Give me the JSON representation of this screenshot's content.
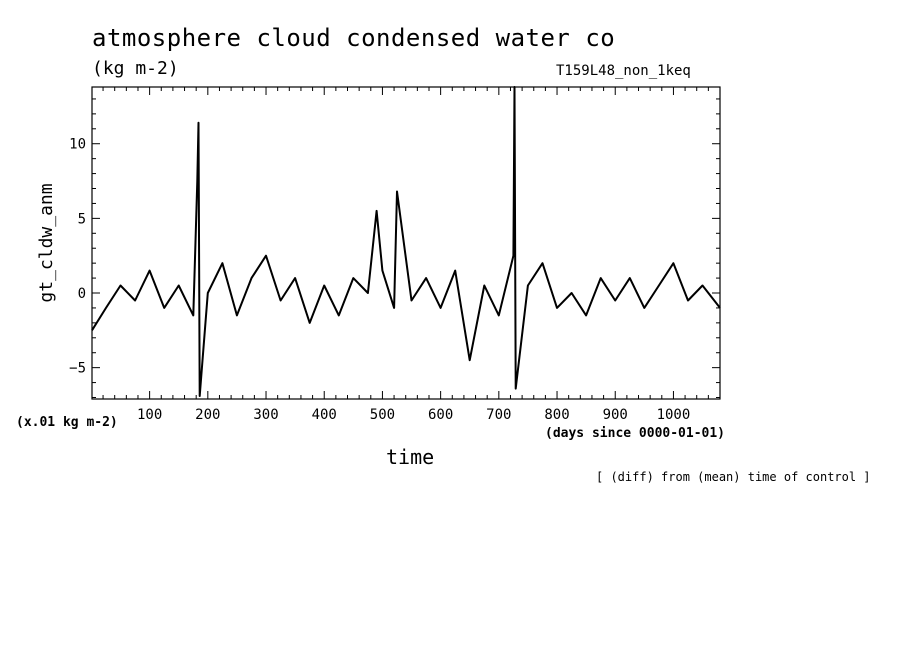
{
  "header": {
    "title": "atmosphere cloud condensed water co",
    "units": "(kg m-2)",
    "run_name": "T159L48_non_1keq"
  },
  "notes": {
    "scale": "(x.01 kg m-2)",
    "time_units": "(days since 0000-01-01)",
    "footnote": "[ (diff) from (mean) time of control ]"
  },
  "chart_data": {
    "type": "line",
    "title": "atmosphere cloud condensed water co",
    "xlabel": "time",
    "ylabel": "gt_cldw_anm",
    "xlim": [
      1,
      1080
    ],
    "ylim": [
      -7.1,
      13.8
    ],
    "xticks": [
      100,
      200,
      300,
      400,
      500,
      600,
      700,
      800,
      900,
      1000
    ],
    "yticks": [
      -5,
      0,
      5,
      10
    ],
    "line_color": "#000000",
    "series": [
      {
        "name": "",
        "x": [
          1,
          25,
          50,
          75,
          100,
          125,
          150,
          175,
          182,
          184,
          186,
          200,
          225,
          250,
          275,
          300,
          325,
          350,
          375,
          400,
          425,
          450,
          475,
          490,
          500,
          520,
          525,
          550,
          575,
          600,
          625,
          650,
          675,
          700,
          725,
          727,
          729,
          750,
          775,
          800,
          825,
          850,
          875,
          900,
          925,
          950,
          975,
          1000,
          1025,
          1050,
          1080
        ],
        "y": [
          -2.5,
          -1.0,
          0.5,
          -0.5,
          1.5,
          -1.0,
          0.5,
          -1.5,
          7.5,
          11.4,
          -6.9,
          0.0,
          2.0,
          -1.5,
          1.0,
          2.5,
          -0.5,
          1.0,
          -2.0,
          0.5,
          -1.5,
          1.0,
          0.0,
          5.5,
          1.5,
          -1.0,
          6.8,
          -0.5,
          1.0,
          -1.0,
          1.5,
          -4.5,
          0.5,
          -1.5,
          2.5,
          13.8,
          -6.4,
          0.5,
          2.0,
          -1.0,
          0.0,
          -1.5,
          1.0,
          -0.5,
          1.0,
          -1.0,
          0.5,
          2.0,
          -0.5,
          0.5,
          -1.0
        ]
      }
    ]
  }
}
